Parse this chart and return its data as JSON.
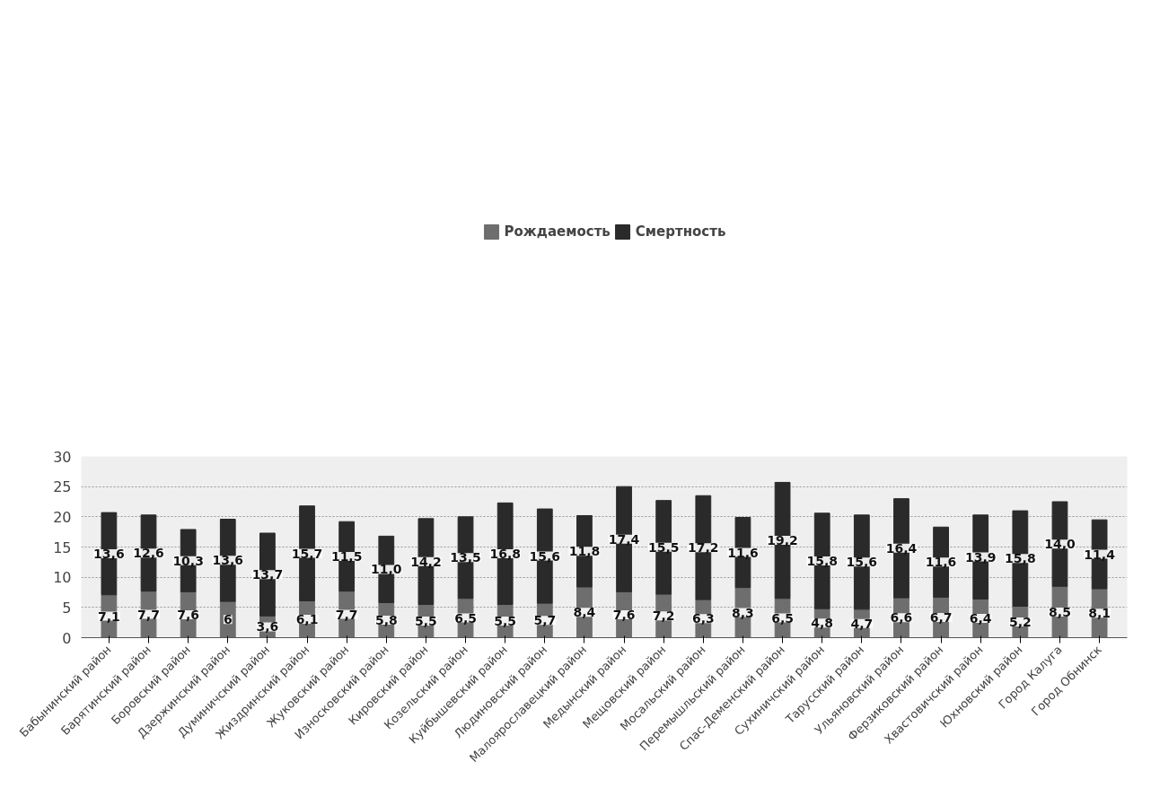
{
  "chart_data": {
    "type": "bar",
    "stacked": true,
    "categories": [
      "Бабынинский район",
      "Барятинский район",
      "Боровский район",
      "Дзержинский район",
      "Думиничский район",
      "Жиздринский район",
      "Жуковский район",
      "Износковский район",
      "Кировский район",
      "Козельский район",
      "Куйбышевский район",
      "Людиновский район",
      "Малоярославецкий район",
      "Медынский район",
      "Мещовский район",
      "Мосальский район",
      "Перемышльский район",
      "Спас-Деменский район",
      "Сухиничский район",
      "Тарусский район",
      "Ульяновский район",
      "Ферзиковский район",
      "Хвастовичский район",
      "Юхновский район",
      "Город Калуга",
      "Город Обнинск"
    ],
    "series": [
      {
        "name": "Рождаемость",
        "color": "#6e6e6e",
        "values": [
          7.1,
          7.7,
          7.6,
          6,
          3.6,
          6.1,
          7.7,
          5.8,
          5.5,
          6.5,
          5.5,
          5.7,
          8.4,
          7.6,
          7.2,
          6.3,
          8.3,
          6.5,
          4.8,
          4.7,
          6.6,
          6.7,
          6.4,
          5.2,
          8.5,
          8.1
        ],
        "value_labels": [
          "7,1",
          "7,7",
          "7,6",
          "6",
          "3,6",
          "6,1",
          "7,7",
          "5,8",
          "5,5",
          "6,5",
          "5,5",
          "5,7",
          "8,4",
          "7,6",
          "7,2",
          "6,3",
          "8,3",
          "6,5",
          "4,8",
          "4,7",
          "6,6",
          "6,7",
          "6,4",
          "5,2",
          "8,5",
          "8,1"
        ]
      },
      {
        "name": "Смертность",
        "color": "#2a2a2a",
        "values": [
          13.6,
          12.6,
          10.3,
          13.6,
          13.7,
          15.7,
          11.5,
          11.0,
          14.2,
          13.5,
          16.8,
          15.6,
          11.8,
          17.4,
          15.5,
          17.2,
          11.6,
          19.2,
          15.8,
          15.6,
          16.4,
          11.6,
          13.9,
          15.8,
          14.0,
          11.4
        ],
        "value_labels": [
          "13,6",
          "12,6",
          "10,3",
          "13,6",
          "13,7",
          "15,7",
          "11,5",
          "11,0",
          "14,2",
          "13,5",
          "16,8",
          "15,6",
          "11,8",
          "17,4",
          "15,5",
          "17,2",
          "11,6",
          "19,2",
          "15,8",
          "15,6",
          "16,4",
          "11,6",
          "13,9",
          "15,8",
          "14,0",
          "11,4"
        ]
      }
    ],
    "ylim": [
      0,
      30
    ],
    "yticks": [
      0,
      5,
      10,
      15,
      20,
      25,
      30
    ],
    "grid": "y",
    "legend": "top"
  }
}
